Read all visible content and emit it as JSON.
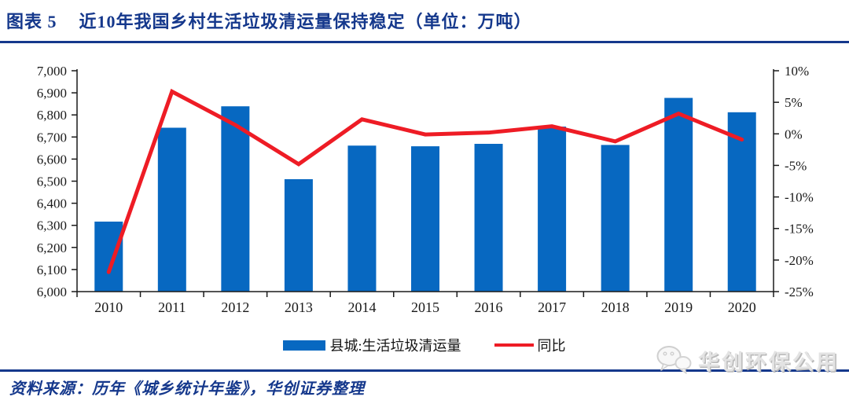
{
  "header": {
    "figure_label": "图表 5",
    "title": "近10年我国乡村生活垃圾清运量保持稳定（单位：万吨）"
  },
  "chart_data": {
    "type": "bar",
    "categories": [
      "2010",
      "2011",
      "2012",
      "2013",
      "2014",
      "2015",
      "2016",
      "2017",
      "2018",
      "2019",
      "2020"
    ],
    "series": [
      {
        "name": "县城:生活垃圾清运量",
        "type": "bar",
        "axis": "left",
        "color": "#0768C1",
        "values": [
          6317,
          6742,
          6839,
          6509,
          6661,
          6658,
          6669,
          6747,
          6664,
          6877,
          6812
        ]
      },
      {
        "name": "同比",
        "type": "line",
        "axis": "right",
        "color": "#EE1C25",
        "values": [
          -21.9,
          6.7,
          1.4,
          -4.8,
          2.3,
          -0.1,
          0.2,
          1.2,
          -1.2,
          3.2,
          -0.9
        ]
      }
    ],
    "left_axis": {
      "min": 6000,
      "max": 7000,
      "step": 100,
      "format": "thousands"
    },
    "right_axis": {
      "min": -25,
      "max": 10,
      "step": 5,
      "suffix": "%"
    },
    "grid": false,
    "legend_position": "bottom",
    "xlabel": "",
    "ylabel": ""
  },
  "footer": {
    "source": "资料来源：历年《城乡统计年鉴》，华创证券整理"
  },
  "watermark": {
    "icon": "wechat-icon",
    "text": "华创环保公用"
  },
  "colors": {
    "navy": "#15388c",
    "bar_blue": "#0768C1",
    "line_red": "#EE1C25",
    "axis_black": "#1a1a1a"
  }
}
